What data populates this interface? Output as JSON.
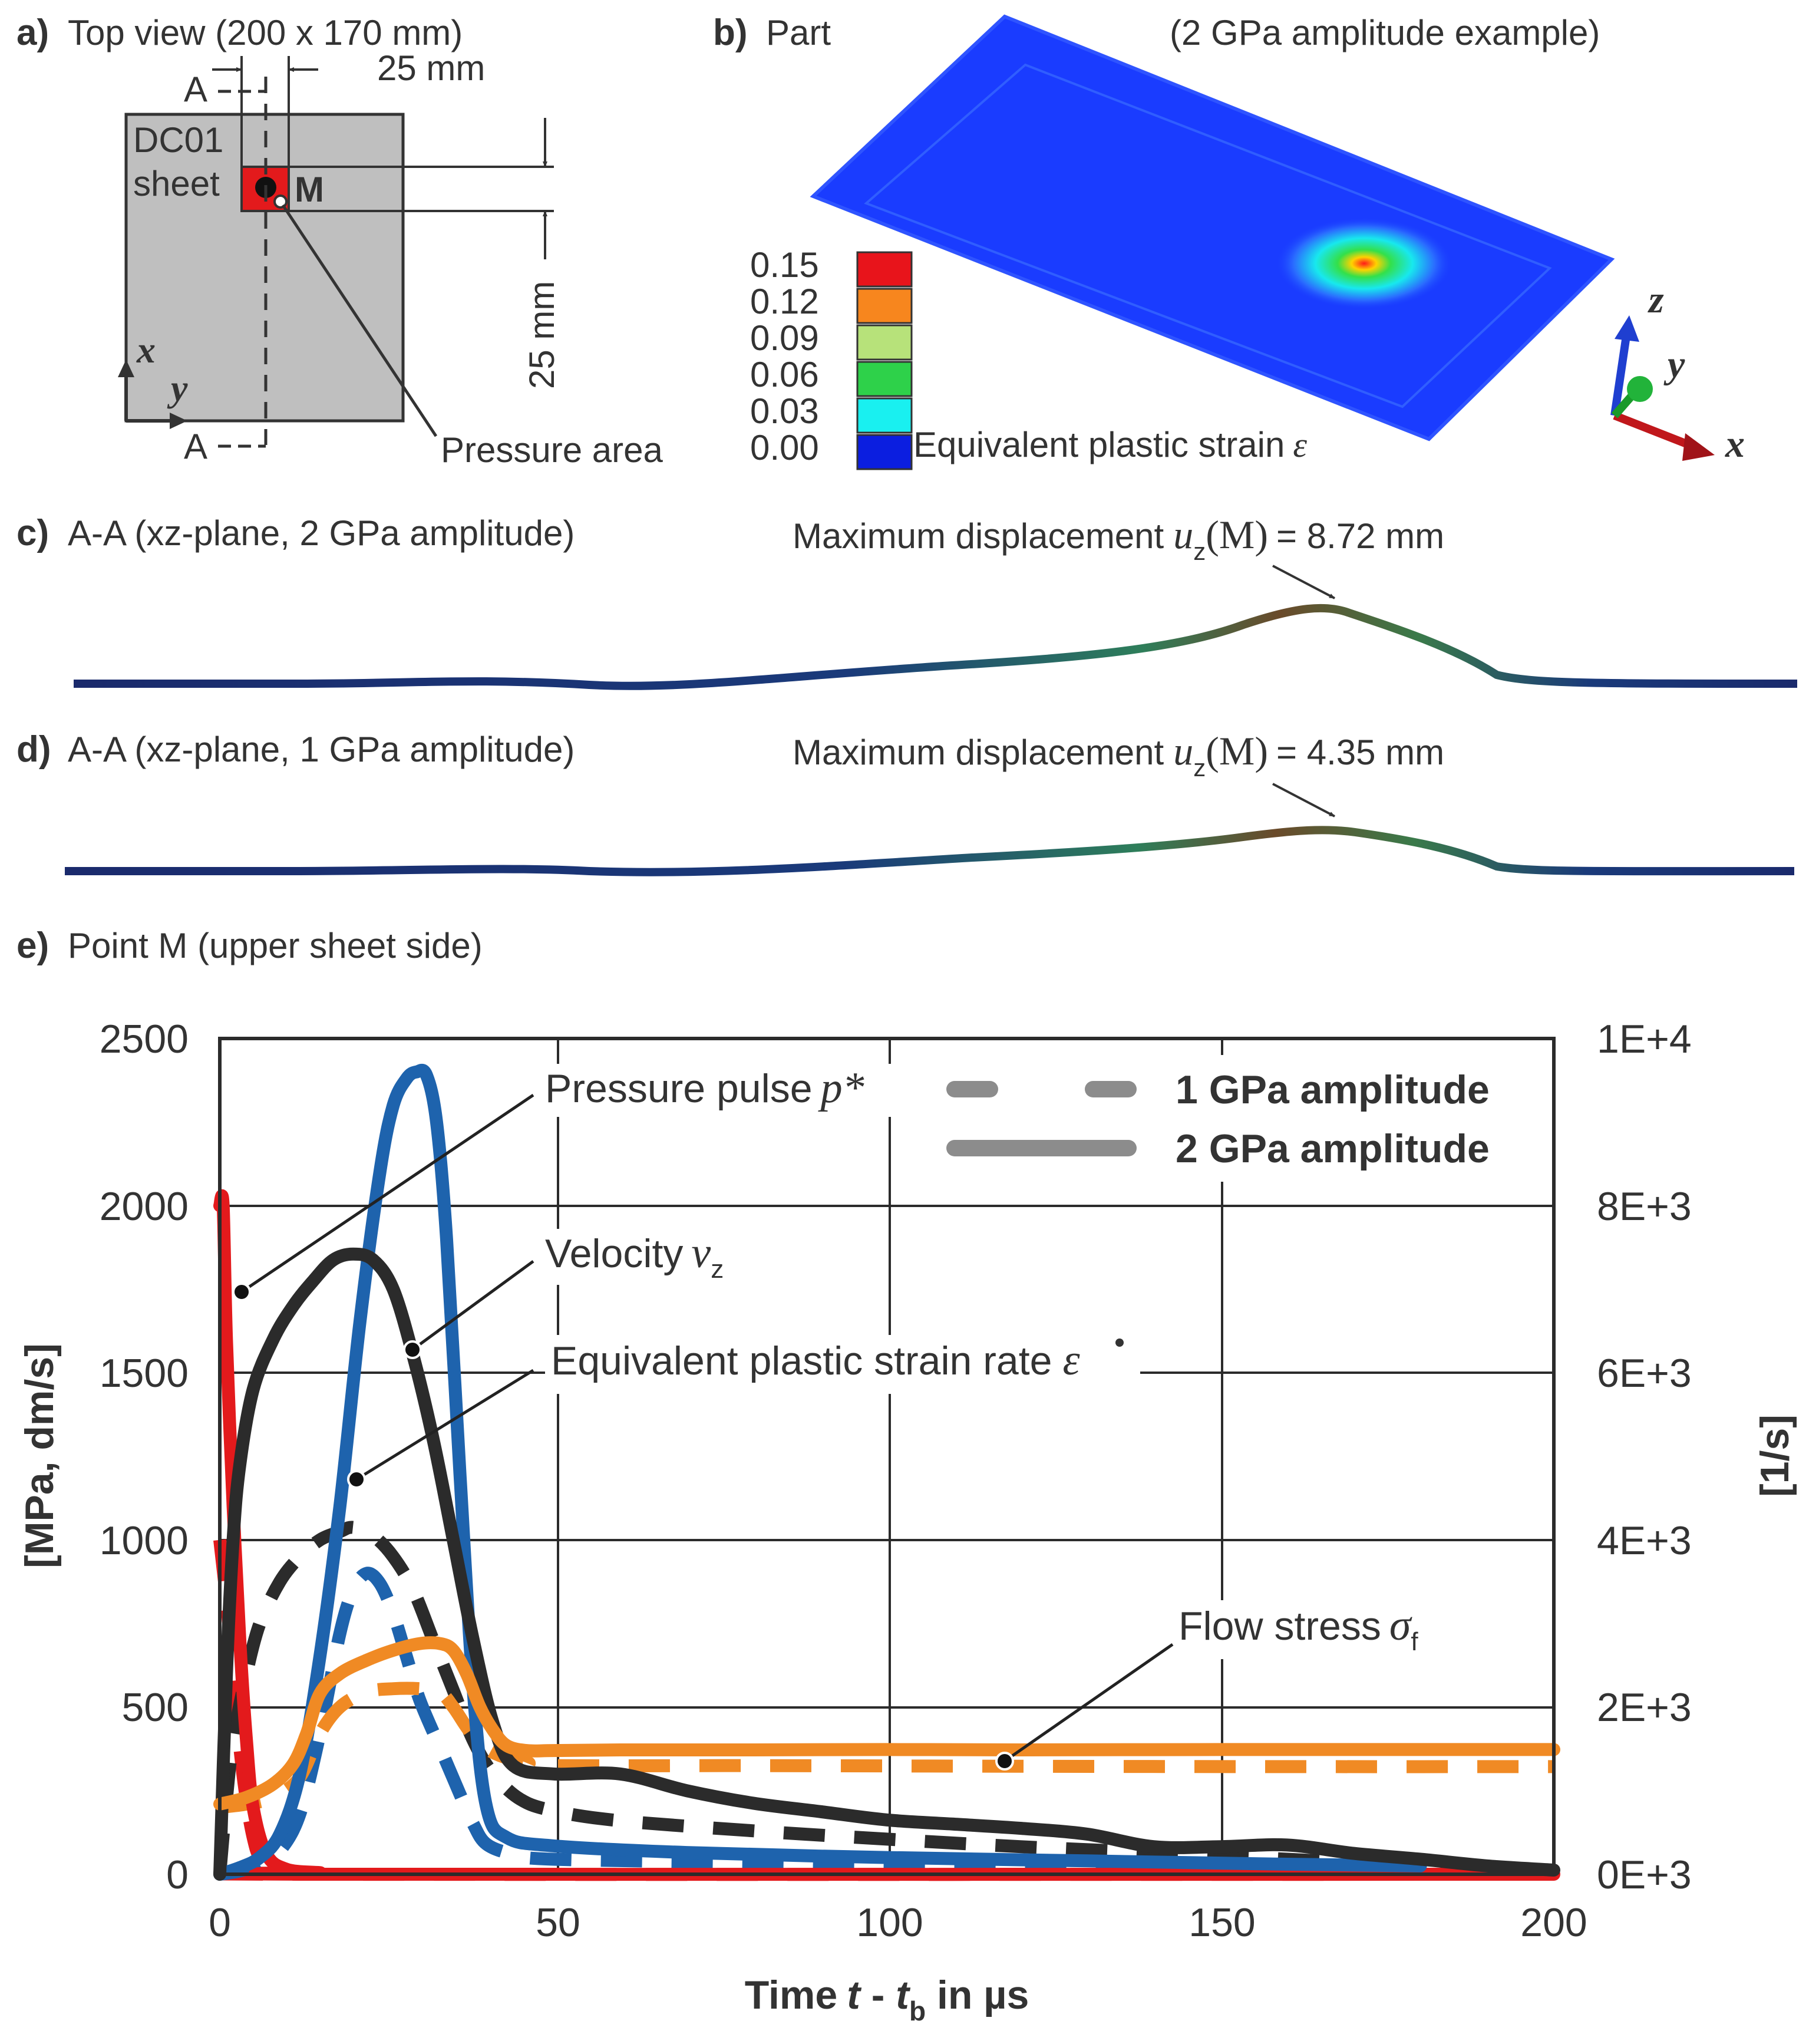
{
  "panel_a": {
    "label": "a)",
    "title": "Top view (200 x 170 mm)",
    "dim_top": "25 mm",
    "dim_right": "25 mm",
    "section_top": "A",
    "section_bottom": "A",
    "sheet_line1": "DC01",
    "sheet_line2": "sheet",
    "point_label": "M",
    "axis_x": "x",
    "axis_y": "y",
    "pressure_area": "Pressure area",
    "colors": {
      "sheet": "#bfbfbf",
      "pressure": "#e31a1c"
    }
  },
  "panel_b": {
    "label": "b)",
    "title": "Part",
    "subtitle": "(2 GPa amplitude example)",
    "legend_values": [
      "0.15",
      "0.12",
      "0.09",
      "0.06",
      "0.03",
      "0.00"
    ],
    "legend_colors": [
      "#e8141b",
      "#f7861e",
      "#b7e27a",
      "#2ed14a",
      "#19f0f0",
      "#0b1ee0"
    ],
    "legend_caption": "Equivalent plastic strain",
    "legend_symbol": "ε",
    "triad": {
      "x": "x",
      "y": "y",
      "z": "z"
    }
  },
  "panel_c": {
    "label": "c)",
    "title": "A-A (xz-plane, 2 GPa amplitude)",
    "annotation_prefix": "Maximum displacement",
    "annotation_var": "u",
    "annotation_sub": "z",
    "annotation_arg": "(M)",
    "annotation_value": "= 8.72 mm"
  },
  "panel_d": {
    "label": "d)",
    "title": "A-A (xz-plane, 1 GPa amplitude)",
    "annotation_prefix": "Maximum displacement",
    "annotation_var": "u",
    "annotation_sub": "z",
    "annotation_arg": "(M)",
    "annotation_value": "= 4.35 mm"
  },
  "panel_e": {
    "label": "e)",
    "title": "Point M (upper sheet side)",
    "ylabel_left": "[MPa, dm/s]",
    "ylabel_right": "[1/s]",
    "xlabel_prefix": "Time",
    "xlabel_t": "t",
    "xlabel_dash": " - ",
    "xlabel_tb": "t",
    "xlabel_b": "b",
    "xlabel_suffix": " in µs",
    "ann_pressure": "Pressure pulse",
    "ann_pressure_sym": "p*",
    "ann_velocity": "Velocity",
    "ann_velocity_sym": "v",
    "ann_velocity_sub": "z",
    "ann_strainrate": "Equivalent plastic strain rate",
    "ann_strainrate_sym": "ε",
    "ann_flow": "Flow stress",
    "ann_flow_sym": "σ",
    "ann_flow_sub": "f",
    "legend_dashed": "1 GPa amplitude",
    "legend_solid": "2 GPa amplitude"
  },
  "chart_data": {
    "type": "line",
    "title": "Point M (upper sheet side)",
    "xlabel": "Time t - tb in µs",
    "ylabel": "[MPa, dm/s]",
    "y2label": "[1/s]",
    "xlim": [
      0,
      200
    ],
    "ylim": [
      0,
      2500
    ],
    "y2lim": [
      0,
      10000
    ],
    "x_ticks": [
      "0",
      "50",
      "100",
      "150",
      "200"
    ],
    "y_ticks": [
      "0",
      "500",
      "1000",
      "1500",
      "2000",
      "2500"
    ],
    "y2_ticks": [
      "0E+3",
      "2E+3",
      "4E+3",
      "6E+3",
      "8E+3",
      "1E+4"
    ],
    "grid": true,
    "series": [
      {
        "name": "Pressure pulse p* (2 GPa)",
        "axis": "left",
        "style": "solid",
        "color": "#e31a1c",
        "x": [
          0,
          0.5,
          1,
          2,
          3,
          4,
          5,
          7,
          10,
          15,
          20,
          200
        ],
        "y": [
          2000,
          2000,
          1600,
          1100,
          700,
          400,
          200,
          60,
          15,
          5,
          0,
          0
        ]
      },
      {
        "name": "Pressure pulse p* (1 GPa)",
        "axis": "left",
        "style": "dashed",
        "color": "#e31a1c",
        "x": [
          0,
          1,
          2,
          3,
          4,
          5,
          6,
          8,
          10,
          15,
          200
        ],
        "y": [
          1000,
          820,
          600,
          380,
          220,
          110,
          50,
          15,
          5,
          0,
          0
        ]
      },
      {
        "name": "Velocity vz (2 GPa)",
        "axis": "left",
        "style": "solid",
        "color": "#1e63ad",
        "x": [
          0,
          3,
          6,
          9,
          12,
          15,
          18,
          21,
          24,
          26,
          28,
          29.5,
          31,
          32.5,
          34,
          36,
          38,
          40,
          43,
          50,
          70,
          100,
          130,
          160,
          180
        ],
        "y": [
          0,
          20,
          50,
          120,
          300,
          650,
          1100,
          1650,
          2100,
          2300,
          2380,
          2400,
          2390,
          2250,
          1900,
          1200,
          550,
          200,
          110,
          85,
          65,
          50,
          40,
          30,
          25
        ]
      },
      {
        "name": "Velocity vz (1 GPa)",
        "axis": "left",
        "style": "dashed",
        "color": "#1e63ad",
        "x": [
          0,
          3,
          6,
          9,
          12,
          15,
          18,
          20,
          22,
          24,
          26,
          28,
          30,
          33,
          36,
          38,
          40,
          44,
          50,
          80,
          120,
          180
        ],
        "y": [
          0,
          10,
          30,
          70,
          180,
          420,
          720,
          850,
          900,
          870,
          780,
          650,
          520,
          380,
          240,
          150,
          90,
          60,
          45,
          35,
          25,
          20
        ]
      },
      {
        "name": "Equivalent plastic strain rate (2 GPa)",
        "axis": "right",
        "style": "solid",
        "color": "#2b2b2b",
        "x": [
          0,
          1,
          2,
          3,
          5,
          8,
          11,
          14,
          17,
          20,
          23,
          26,
          29,
          32,
          35,
          38,
          41,
          44,
          50,
          60,
          70,
          80,
          90,
          100,
          110,
          120,
          130,
          140,
          150,
          160,
          170,
          180,
          190,
          200
        ],
        "y": [
          0,
          2400,
          4000,
          4900,
          5800,
          6400,
          6800,
          7100,
          7350,
          7420,
          7350,
          7000,
          6200,
          5200,
          4000,
          2800,
          1800,
          1300,
          1200,
          1200,
          1000,
          850,
          750,
          650,
          600,
          550,
          480,
          330,
          330,
          350,
          250,
          180,
          100,
          50
        ]
      },
      {
        "name": "Equivalent plastic strain rate (1 GPa)",
        "axis": "right",
        "style": "dashed",
        "color": "#2b2b2b",
        "x": [
          0,
          1,
          2,
          4,
          6,
          9,
          12,
          15,
          18,
          20,
          23,
          26,
          29,
          32,
          35,
          38,
          41,
          45,
          50,
          60,
          80,
          100,
          120,
          140,
          160,
          180
        ],
        "y": [
          0,
          900,
          1600,
          2400,
          3000,
          3500,
          3800,
          4000,
          4100,
          4150,
          4050,
          3800,
          3400,
          2800,
          2200,
          1600,
          1200,
          900,
          760,
          640,
          520,
          420,
          330,
          260,
          180,
          100
        ]
      },
      {
        "name": "Flow stress σf (2 GPa)",
        "axis": "left",
        "style": "solid",
        "color": "#f08a24",
        "x": [
          0,
          4,
          8,
          11,
          13,
          15,
          18,
          22,
          26,
          30,
          33,
          35,
          37,
          39,
          41,
          43,
          46,
          50,
          60,
          80,
          100,
          120,
          150,
          180,
          200
        ],
        "y": [
          210,
          230,
          270,
          330,
          420,
          540,
          600,
          640,
          670,
          690,
          690,
          670,
          600,
          500,
          430,
          385,
          370,
          370,
          372,
          372,
          373,
          372,
          373,
          373,
          373
        ]
      },
      {
        "name": "Flow stress σf (1 GPa)",
        "axis": "left",
        "style": "dashed",
        "color": "#f08a24",
        "x": [
          0,
          4,
          8,
          12,
          15,
          18,
          22,
          26,
          30,
          33,
          35,
          37,
          39,
          42,
          46,
          50,
          80,
          120,
          160,
          200
        ],
        "y": [
          200,
          210,
          230,
          290,
          420,
          500,
          545,
          555,
          555,
          545,
          500,
          440,
          390,
          355,
          335,
          325,
          325,
          323,
          322,
          322
        ]
      }
    ]
  }
}
